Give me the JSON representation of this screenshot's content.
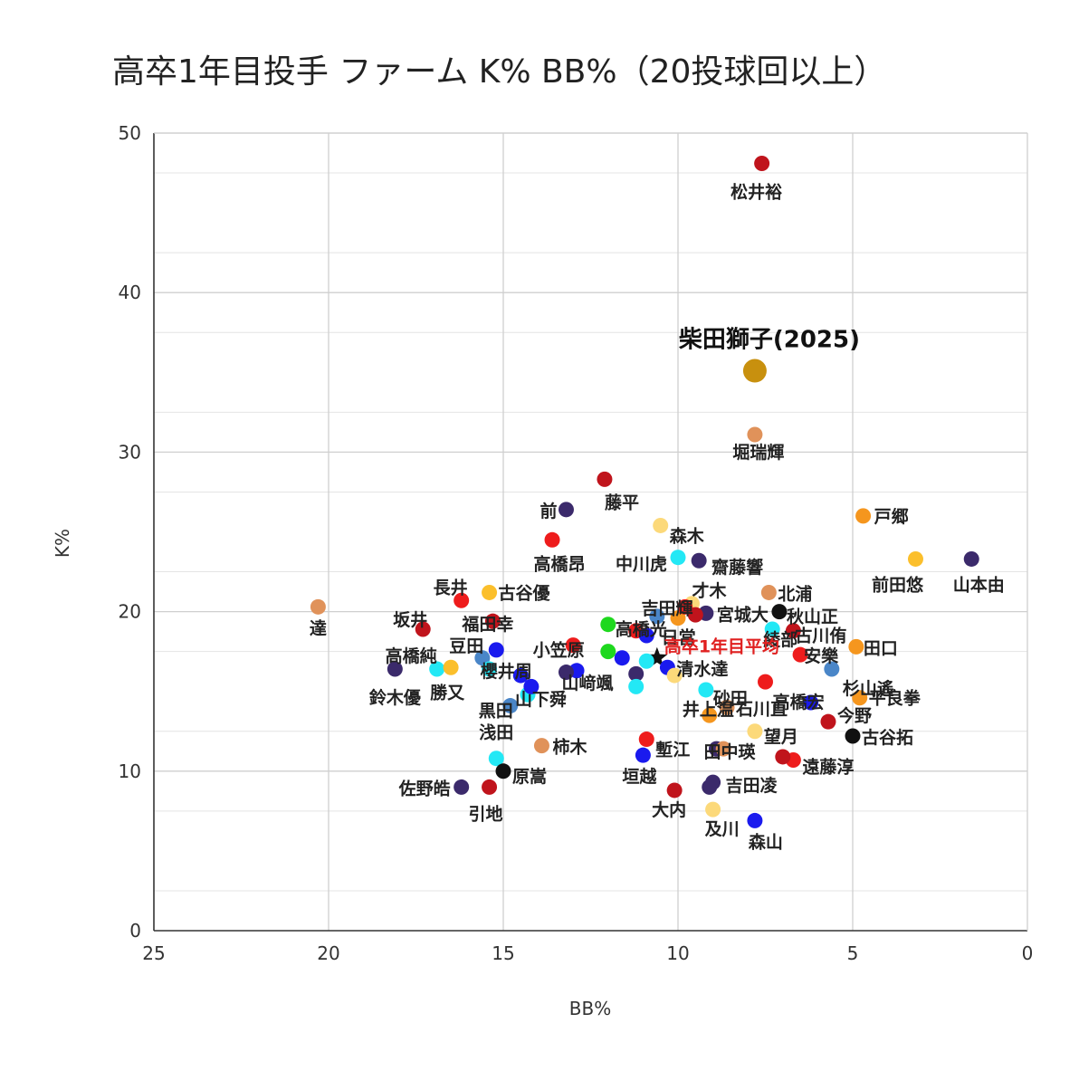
{
  "chart_data": {
    "type": "scatter",
    "title": "高卒1年目投手 ファーム K% BB%（20投球回以上）",
    "xlabel": "BB%",
    "ylabel": "K%",
    "xlim": [
      25,
      0
    ],
    "ylim": [
      0,
      50
    ],
    "x_reversed": true,
    "xticks": [
      "25",
      "20",
      "15",
      "10",
      "5",
      "0"
    ],
    "yticks": [
      "0",
      "10",
      "20",
      "30",
      "40",
      "50"
    ],
    "grid": true,
    "colors": {
      "darkred": "#c0141c",
      "red": "#ee1c1c",
      "purple": "#3b2a6b",
      "orange": "#f5961e",
      "lightorange": "#e0925a",
      "yellow": "#fbbf2c",
      "paleyellow": "#fcd97a",
      "cyan": "#23e8f5",
      "blue": "#1a1aee",
      "steelblue": "#4a86c8",
      "green": "#1ed81e",
      "black": "#111111",
      "gold": "#c8900e"
    },
    "points": [
      {
        "name": "松井裕",
        "x": 7.6,
        "y": 48.1,
        "color": "darkred"
      },
      {
        "name": "柴田獅子(2025)",
        "x": 7.8,
        "y": 35.1,
        "color": "gold",
        "highlight": true
      },
      {
        "name": "堀瑞輝",
        "x": 7.8,
        "y": 31.1,
        "color": "lightorange"
      },
      {
        "name": "藤平",
        "x": 12.1,
        "y": 28.3,
        "color": "darkred"
      },
      {
        "name": "前",
        "x": 13.2,
        "y": 26.4,
        "color": "purple"
      },
      {
        "name": "戸郷",
        "x": 4.7,
        "y": 26.0,
        "color": "orange"
      },
      {
        "name": "森木",
        "x": 10.5,
        "y": 25.4,
        "color": "paleyellow"
      },
      {
        "name": "高橋昂",
        "x": 13.6,
        "y": 24.5,
        "color": "red"
      },
      {
        "name": "中川虎",
        "x": 10.0,
        "y": 23.4,
        "color": "cyan"
      },
      {
        "name": "齋藤響",
        "x": 9.4,
        "y": 23.2,
        "color": "purple"
      },
      {
        "name": "前田悠",
        "x": 3.2,
        "y": 23.3,
        "color": "yellow"
      },
      {
        "name": "山本由",
        "x": 1.6,
        "y": 23.3,
        "color": "purple"
      },
      {
        "name": "北浦",
        "x": 7.4,
        "y": 21.2,
        "color": "lightorange"
      },
      {
        "name": "古谷優",
        "x": 15.4,
        "y": 21.2,
        "color": "yellow"
      },
      {
        "name": "長井",
        "x": 16.2,
        "y": 20.7,
        "color": "red"
      },
      {
        "name": "才木",
        "x": 9.6,
        "y": 20.5,
        "color": "paleyellow"
      },
      {
        "name": "達",
        "x": 20.3,
        "y": 20.3,
        "color": "lightorange"
      },
      {
        "name": "吉田輝",
        "x": 10.0,
        "y": 19.6,
        "color": "orange"
      },
      {
        "name": "宮城大",
        "x": 9.2,
        "y": 19.9,
        "color": "purple"
      },
      {
        "name": "秋山正",
        "x": 7.1,
        "y": 20.0,
        "color": "black"
      },
      {
        "name": "坂井",
        "x": 17.3,
        "y": 18.9,
        "color": "darkred"
      },
      {
        "name": "福田幸",
        "x": 15.3,
        "y": 19.4,
        "color": "darkred"
      },
      {
        "name": "高橋光",
        "x": 12.0,
        "y": 19.2,
        "color": "green"
      },
      {
        "name": "日當",
        "x": 11.2,
        "y": 18.8,
        "color": "red"
      },
      {
        "name": "綾部",
        "x": 7.3,
        "y": 18.9,
        "color": "cyan"
      },
      {
        "name": "古川侑",
        "x": 6.7,
        "y": 18.8,
        "color": "darkred"
      },
      {
        "name": "田口",
        "x": 4.9,
        "y": 17.8,
        "color": "orange"
      },
      {
        "name": "豆田",
        "x": 15.2,
        "y": 17.6,
        "color": "blue"
      },
      {
        "name": "高卒1年目平均",
        "x": 10.6,
        "y": 17.1,
        "color": "black",
        "average": true
      },
      {
        "name": "安樂",
        "x": 6.5,
        "y": 17.3,
        "color": "red"
      },
      {
        "name": "高橋純",
        "x": 16.9,
        "y": 16.4,
        "color": "cyan"
      },
      {
        "name": "小笠原",
        "x": 13.0,
        "y": 17.9,
        "color": "red"
      },
      {
        "name": "清水達",
        "x": 10.3,
        "y": 16.5,
        "color": "blue"
      },
      {
        "name": "杉山遙",
        "x": 5.6,
        "y": 16.4,
        "color": "steelblue"
      },
      {
        "name": "鈴木優",
        "x": 18.1,
        "y": 16.4,
        "color": "purple"
      },
      {
        "name": "勝又",
        "x": 16.5,
        "y": 16.5,
        "color": "yellow"
      },
      {
        "name": "櫻井周",
        "x": 14.5,
        "y": 16.0,
        "color": "blue"
      },
      {
        "name": "山﨑颯",
        "x": 12.9,
        "y": 16.3,
        "color": "blue"
      },
      {
        "name": "砂田",
        "x": 9.2,
        "y": 15.1,
        "color": "cyan"
      },
      {
        "name": "高橋宏",
        "x": 6.2,
        "y": 14.3,
        "color": "blue"
      },
      {
        "name": "平良拳",
        "x": 4.8,
        "y": 14.6,
        "color": "orange"
      },
      {
        "name": "黒田",
        "x": 14.8,
        "y": 14.1,
        "color": "steelblue"
      },
      {
        "name": "山下舜",
        "x": 14.3,
        "y": 14.8,
        "color": "cyan"
      },
      {
        "name": "石川直",
        "x": 8.6,
        "y": 14.0,
        "color": "lightorange"
      },
      {
        "name": "今野",
        "x": 5.7,
        "y": 13.1,
        "color": "darkred"
      },
      {
        "name": "古谷拓",
        "x": 5.0,
        "y": 12.2,
        "color": "black"
      },
      {
        "name": "井上温",
        "x": 9.1,
        "y": 13.5,
        "color": "orange"
      },
      {
        "name": "望月",
        "x": 7.8,
        "y": 12.5,
        "color": "paleyellow"
      },
      {
        "name": "浅田",
        "x": 15.2,
        "y": 10.8,
        "color": "cyan"
      },
      {
        "name": "柿木",
        "x": 13.9,
        "y": 11.6,
        "color": "lightorange"
      },
      {
        "name": "塹江",
        "x": 10.9,
        "y": 12.0,
        "color": "red"
      },
      {
        "name": "遠藤淳",
        "x": 6.7,
        "y": 10.7,
        "color": "red"
      },
      {
        "name": "田中瑛",
        "x": 8.9,
        "y": 11.4,
        "color": "purple"
      },
      {
        "name": "原嵩",
        "x": 15.0,
        "y": 10.0,
        "color": "black"
      },
      {
        "name": "垣越",
        "x": 11.0,
        "y": 11.0,
        "color": "blue"
      },
      {
        "name": "吉田凌",
        "x": 9.0,
        "y": 9.3,
        "color": "purple"
      },
      {
        "name": "佐野皓",
        "x": 16.2,
        "y": 9.0,
        "color": "purple"
      },
      {
        "name": "引地",
        "x": 15.4,
        "y": 9.0,
        "color": "darkred"
      },
      {
        "name": "大内",
        "x": 10.1,
        "y": 8.8,
        "color": "darkred"
      },
      {
        "name": "及川",
        "x": 9.0,
        "y": 7.6,
        "color": "paleyellow"
      },
      {
        "name": "森山",
        "x": 7.8,
        "y": 6.9,
        "color": "blue"
      },
      {
        "name": "",
        "x": 15.6,
        "y": 17.1,
        "color": "steelblue"
      },
      {
        "name": "",
        "x": 15.4,
        "y": 16.4,
        "color": "cyan"
      },
      {
        "name": "",
        "x": 14.2,
        "y": 15.3,
        "color": "blue"
      },
      {
        "name": "",
        "x": 13.2,
        "y": 16.2,
        "color": "purple"
      },
      {
        "name": "",
        "x": 12.0,
        "y": 17.5,
        "color": "green"
      },
      {
        "name": "",
        "x": 11.6,
        "y": 17.1,
        "color": "blue"
      },
      {
        "name": "",
        "x": 11.2,
        "y": 16.1,
        "color": "purple"
      },
      {
        "name": "",
        "x": 10.9,
        "y": 16.9,
        "color": "cyan"
      },
      {
        "name": "",
        "x": 10.9,
        "y": 18.5,
        "color": "blue"
      },
      {
        "name": "",
        "x": 10.1,
        "y": 16.0,
        "color": "paleyellow"
      },
      {
        "name": "",
        "x": 10.6,
        "y": 19.7,
        "color": "steelblue"
      },
      {
        "name": "",
        "x": 9.8,
        "y": 20.3,
        "color": "red"
      },
      {
        "name": "",
        "x": 9.5,
        "y": 19.8,
        "color": "darkred"
      },
      {
        "name": "",
        "x": 11.2,
        "y": 15.3,
        "color": "cyan"
      },
      {
        "name": "",
        "x": 7.5,
        "y": 15.6,
        "color": "red"
      },
      {
        "name": "",
        "x": 8.7,
        "y": 11.4,
        "color": "lightorange"
      },
      {
        "name": "",
        "x": 7.0,
        "y": 10.9,
        "color": "darkred"
      },
      {
        "name": "",
        "x": 9.1,
        "y": 9.0,
        "color": "purple"
      }
    ]
  }
}
